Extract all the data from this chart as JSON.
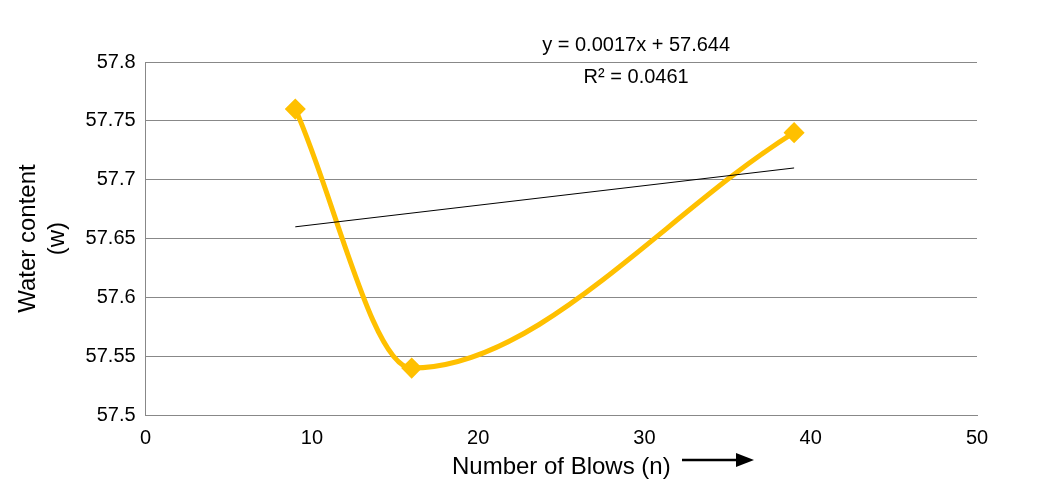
{
  "chart_data": {
    "type": "line",
    "xlabel": "Number of Blows (n)",
    "ylabel": "Water content (w)",
    "xlim": [
      0,
      50
    ],
    "xticks": [
      0,
      10,
      20,
      30,
      40,
      50
    ],
    "ylim": [
      57.5,
      57.8
    ],
    "yticks": [
      57.5,
      57.55,
      57.6,
      57.65,
      57.7,
      57.75,
      57.8
    ],
    "grid": "y",
    "legend": false,
    "marker": "diamond",
    "annotations": [
      "y = 0.0017x + 57.644",
      "R² = 0.0461"
    ],
    "series": [
      {
        "color": "#ffc000",
        "x": [
          9,
          16,
          39
        ],
        "values": [
          57.76,
          57.54,
          57.74
        ]
      },
      {
        "type": "line",
        "color": "#000000",
        "marker": "none",
        "x": [
          9,
          39
        ],
        "values": [
          57.66,
          57.71
        ]
      }
    ]
  }
}
